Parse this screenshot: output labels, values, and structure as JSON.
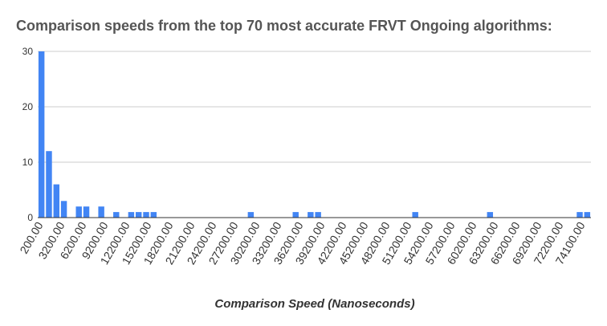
{
  "chart_data": {
    "type": "bar",
    "title": "Comparison speeds from the top 70 most accurate FRVT Ongoing algorithms:",
    "xlabel": "Comparison Speed (Nanoseconds)",
    "ylabel": "",
    "ylim": [
      0,
      30
    ],
    "yticks": [
      "0",
      "10",
      "20",
      "30"
    ],
    "grid": true,
    "legend": "none",
    "color": "#4285f4",
    "xticks": [
      "200.00",
      "3200.00",
      "6200.00",
      "9200.00",
      "12200.00",
      "15200.00",
      "18200.00",
      "21200.00",
      "24200.00",
      "27200.00",
      "30200.00",
      "33200.00",
      "36200.00",
      "39200.00",
      "42200.00",
      "45200.00",
      "48200.00",
      "51200.00",
      "54200.00",
      "57200.00",
      "60200.00",
      "63200.00",
      "66200.00",
      "69200.00",
      "72200.00",
      "74100.00"
    ],
    "bin_width": 1000,
    "x": [
      200,
      1200,
      2200,
      3200,
      4200,
      5200,
      6200,
      7200,
      8200,
      9200,
      10200,
      11200,
      12200,
      13200,
      14200,
      15200,
      16200,
      17200,
      18200,
      19200,
      20200,
      21200,
      22200,
      23200,
      24200,
      25200,
      26200,
      27200,
      28200,
      29200,
      30200,
      31200,
      32200,
      33200,
      34200,
      35200,
      36200,
      37200,
      38200,
      39200,
      40200,
      41200,
      42200,
      43200,
      44200,
      45200,
      46200,
      47200,
      48200,
      49200,
      50200,
      51200,
      52200,
      53200,
      54200,
      55200,
      56200,
      57200,
      58200,
      59200,
      60200,
      61200,
      62200,
      63200,
      64200,
      65200,
      66200,
      67200,
      68200,
      69200,
      70200,
      71200,
      72200,
      73200
    ],
    "values": [
      30,
      12,
      6,
      3,
      0,
      2,
      2,
      0,
      2,
      0,
      1,
      0,
      1,
      1,
      1,
      1,
      0,
      0,
      0,
      0,
      0,
      0,
      0,
      0,
      0,
      0,
      0,
      0,
      1,
      0,
      0,
      0,
      0,
      0,
      1,
      0,
      1,
      1,
      0,
      0,
      0,
      0,
      0,
      0,
      0,
      0,
      0,
      0,
      0,
      0,
      1,
      0,
      0,
      0,
      0,
      0,
      0,
      0,
      0,
      0,
      1,
      0,
      0,
      0,
      0,
      0,
      0,
      0,
      0,
      0,
      0,
      0,
      1,
      1
    ]
  }
}
